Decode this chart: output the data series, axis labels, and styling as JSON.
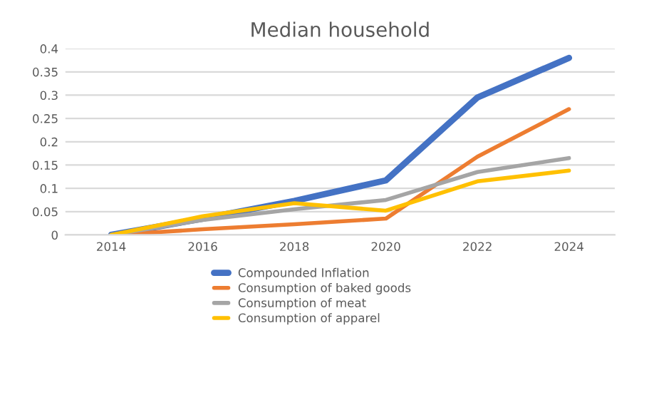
{
  "chart_data": {
    "type": "line",
    "title": "Median household",
    "categories": [
      "2014",
      "2016",
      "2018",
      "2020",
      "2022",
      "2024"
    ],
    "series": [
      {
        "name": "Compounded Inflation",
        "color": "#4472c4",
        "values": [
          0,
          0.035,
          0.073,
          0.117,
          0.295,
          0.38
        ]
      },
      {
        "name": "Consumption of baked goods",
        "color": "#ed7d31",
        "values": [
          0,
          0.012,
          0.023,
          0.035,
          0.168,
          0.27
        ]
      },
      {
        "name": "Consumption of meat",
        "color": "#a5a5a5",
        "values": [
          0,
          0.032,
          0.055,
          0.075,
          0.135,
          0.165
        ]
      },
      {
        "name": "Consumption of apparel",
        "color": "#ffc000",
        "values": [
          0,
          0.04,
          0.068,
          0.052,
          0.115,
          0.138
        ]
      }
    ],
    "ylim": [
      0,
      0.4
    ],
    "yticks": [
      0,
      0.05,
      0.1,
      0.15,
      0.2,
      0.25,
      0.3,
      0.35,
      0.4
    ],
    "grid": "y",
    "legend": "bottom",
    "marker": "none",
    "line_style": "solid"
  }
}
